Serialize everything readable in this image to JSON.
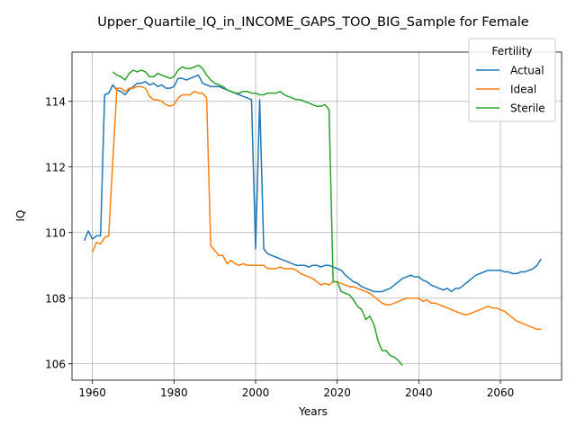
{
  "chart_data": {
    "type": "line",
    "title": "Upper_Quartile_IQ_in_INCOME_GAPS_TOO_BIG_Sample for Female",
    "xlabel": "Years",
    "ylabel": "IQ",
    "xlim": [
      1955,
      2075
    ],
    "ylim": [
      105.5,
      115.5
    ],
    "xticks": [
      1960,
      1980,
      2000,
      2020,
      2040,
      2060
    ],
    "yticks": [
      106,
      108,
      110,
      112,
      114
    ],
    "grid": true,
    "legend": {
      "title": "Fertility",
      "position": "top-right"
    },
    "series": [
      {
        "name": "Actual",
        "color": "#1f77b4",
        "points": [
          [
            1958,
            109.75
          ],
          [
            1959,
            110.05
          ],
          [
            1960,
            109.8
          ],
          [
            1961,
            109.9
          ],
          [
            1962,
            109.9
          ],
          [
            1963,
            114.2
          ],
          [
            1964,
            114.25
          ],
          [
            1965,
            114.5
          ],
          [
            1966,
            114.35
          ],
          [
            1967,
            114.3
          ],
          [
            1968,
            114.2
          ],
          [
            1969,
            114.35
          ],
          [
            1970,
            114.45
          ],
          [
            1971,
            114.55
          ],
          [
            1972,
            114.55
          ],
          [
            1973,
            114.6
          ],
          [
            1974,
            114.5
          ],
          [
            1975,
            114.55
          ],
          [
            1976,
            114.45
          ],
          [
            1977,
            114.5
          ],
          [
            1978,
            114.4
          ],
          [
            1979,
            114.4
          ],
          [
            1980,
            114.45
          ],
          [
            1981,
            114.7
          ],
          [
            1982,
            114.7
          ],
          [
            1983,
            114.65
          ],
          [
            1984,
            114.7
          ],
          [
            1985,
            114.75
          ],
          [
            1986,
            114.8
          ],
          [
            1987,
            114.55
          ],
          [
            1988,
            114.5
          ],
          [
            1989,
            114.45
          ],
          [
            1990,
            114.45
          ],
          [
            1991,
            114.45
          ],
          [
            1992,
            114.4
          ],
          [
            1993,
            114.35
          ],
          [
            1994,
            114.3
          ],
          [
            1995,
            114.25
          ],
          [
            1996,
            114.2
          ],
          [
            1997,
            114.15
          ],
          [
            1998,
            114.1
          ],
          [
            1999,
            114.05
          ],
          [
            2000,
            109.5
          ],
          [
            2001,
            114.05
          ],
          [
            2002,
            109.5
          ],
          [
            2003,
            109.35
          ],
          [
            2004,
            109.3
          ],
          [
            2005,
            109.25
          ],
          [
            2006,
            109.2
          ],
          [
            2007,
            109.15
          ],
          [
            2008,
            109.1
          ],
          [
            2009,
            109.05
          ],
          [
            2010,
            109.0
          ],
          [
            2011,
            109.0
          ],
          [
            2012,
            109.0
          ],
          [
            2013,
            108.95
          ],
          [
            2014,
            109.0
          ],
          [
            2015,
            109.0
          ],
          [
            2016,
            108.95
          ],
          [
            2017,
            109.0
          ],
          [
            2018,
            109.0
          ],
          [
            2019,
            108.95
          ],
          [
            2020,
            108.9
          ],
          [
            2021,
            108.85
          ],
          [
            2022,
            108.7
          ],
          [
            2023,
            108.6
          ],
          [
            2024,
            108.5
          ],
          [
            2025,
            108.45
          ],
          [
            2026,
            108.35
          ],
          [
            2027,
            108.3
          ],
          [
            2028,
            108.25
          ],
          [
            2029,
            108.2
          ],
          [
            2030,
            108.2
          ],
          [
            2031,
            108.2
          ],
          [
            2032,
            108.25
          ],
          [
            2033,
            108.3
          ],
          [
            2034,
            108.4
          ],
          [
            2035,
            108.5
          ],
          [
            2036,
            108.6
          ],
          [
            2037,
            108.65
          ],
          [
            2038,
            108.7
          ],
          [
            2039,
            108.65
          ],
          [
            2040,
            108.65
          ],
          [
            2041,
            108.55
          ],
          [
            2042,
            108.5
          ],
          [
            2043,
            108.4
          ],
          [
            2044,
            108.35
          ],
          [
            2045,
            108.3
          ],
          [
            2046,
            108.25
          ],
          [
            2047,
            108.3
          ],
          [
            2048,
            108.2
          ],
          [
            2049,
            108.3
          ],
          [
            2050,
            108.3
          ],
          [
            2051,
            108.4
          ],
          [
            2052,
            108.5
          ],
          [
            2053,
            108.6
          ],
          [
            2054,
            108.7
          ],
          [
            2055,
            108.75
          ],
          [
            2056,
            108.8
          ],
          [
            2057,
            108.85
          ],
          [
            2058,
            108.85
          ],
          [
            2059,
            108.85
          ],
          [
            2060,
            108.85
          ],
          [
            2061,
            108.8
          ],
          [
            2062,
            108.8
          ],
          [
            2063,
            108.75
          ],
          [
            2064,
            108.75
          ],
          [
            2065,
            108.8
          ],
          [
            2066,
            108.8
          ],
          [
            2067,
            108.85
          ],
          [
            2068,
            108.9
          ],
          [
            2069,
            109.0
          ],
          [
            2070,
            109.2
          ]
        ]
      },
      {
        "name": "Ideal",
        "color": "#ff7f0e",
        "points": [
          [
            1960,
            109.4
          ],
          [
            1961,
            109.7
          ],
          [
            1962,
            109.65
          ],
          [
            1963,
            109.85
          ],
          [
            1964,
            109.9
          ],
          [
            1965,
            112.2
          ],
          [
            1966,
            114.4
          ],
          [
            1967,
            114.4
          ],
          [
            1968,
            114.3
          ],
          [
            1969,
            114.4
          ],
          [
            1970,
            114.4
          ],
          [
            1971,
            114.45
          ],
          [
            1972,
            114.45
          ],
          [
            1973,
            114.4
          ],
          [
            1974,
            114.15
          ],
          [
            1975,
            114.05
          ],
          [
            1976,
            114.05
          ],
          [
            1977,
            114.0
          ],
          [
            1978,
            113.9
          ],
          [
            1979,
            113.85
          ],
          [
            1980,
            113.9
          ],
          [
            1981,
            114.1
          ],
          [
            1982,
            114.2
          ],
          [
            1983,
            114.2
          ],
          [
            1984,
            114.2
          ],
          [
            1985,
            114.3
          ],
          [
            1986,
            114.25
          ],
          [
            1987,
            114.25
          ],
          [
            1988,
            114.1
          ],
          [
            1989,
            109.6
          ],
          [
            1990,
            109.45
          ],
          [
            1991,
            109.3
          ],
          [
            1992,
            109.3
          ],
          [
            1993,
            109.05
          ],
          [
            1994,
            109.15
          ],
          [
            1995,
            109.05
          ],
          [
            1996,
            109.0
          ],
          [
            1997,
            109.05
          ],
          [
            1998,
            109.0
          ],
          [
            1999,
            109.0
          ],
          [
            2000,
            109.0
          ],
          [
            2001,
            109.0
          ],
          [
            2002,
            109.0
          ],
          [
            2003,
            108.9
          ],
          [
            2004,
            108.9
          ],
          [
            2005,
            108.9
          ],
          [
            2006,
            108.95
          ],
          [
            2007,
            108.9
          ],
          [
            2008,
            108.9
          ],
          [
            2009,
            108.9
          ],
          [
            2010,
            108.85
          ],
          [
            2011,
            108.75
          ],
          [
            2012,
            108.7
          ],
          [
            2013,
            108.65
          ],
          [
            2014,
            108.6
          ],
          [
            2015,
            108.5
          ],
          [
            2016,
            108.4
          ],
          [
            2017,
            108.45
          ],
          [
            2018,
            108.4
          ],
          [
            2019,
            108.5
          ],
          [
            2020,
            108.5
          ],
          [
            2021,
            108.45
          ],
          [
            2022,
            108.4
          ],
          [
            2023,
            108.35
          ],
          [
            2024,
            108.35
          ],
          [
            2025,
            108.3
          ],
          [
            2026,
            108.25
          ],
          [
            2027,
            108.2
          ],
          [
            2028,
            108.15
          ],
          [
            2029,
            108.05
          ],
          [
            2030,
            107.95
          ],
          [
            2031,
            107.85
          ],
          [
            2032,
            107.8
          ],
          [
            2033,
            107.8
          ],
          [
            2034,
            107.85
          ],
          [
            2035,
            107.9
          ],
          [
            2036,
            107.95
          ],
          [
            2037,
            108.0
          ],
          [
            2038,
            108.0
          ],
          [
            2039,
            108.0
          ],
          [
            2040,
            108.0
          ],
          [
            2041,
            107.9
          ],
          [
            2042,
            107.95
          ],
          [
            2043,
            107.85
          ],
          [
            2044,
            107.85
          ],
          [
            2045,
            107.8
          ],
          [
            2046,
            107.75
          ],
          [
            2047,
            107.7
          ],
          [
            2048,
            107.65
          ],
          [
            2049,
            107.6
          ],
          [
            2050,
            107.55
          ],
          [
            2051,
            107.5
          ],
          [
            2052,
            107.5
          ],
          [
            2053,
            107.55
          ],
          [
            2054,
            107.6
          ],
          [
            2055,
            107.65
          ],
          [
            2056,
            107.7
          ],
          [
            2057,
            107.75
          ],
          [
            2058,
            107.7
          ],
          [
            2059,
            107.7
          ],
          [
            2060,
            107.65
          ],
          [
            2061,
            107.6
          ],
          [
            2062,
            107.5
          ],
          [
            2063,
            107.4
          ],
          [
            2064,
            107.3
          ],
          [
            2065,
            107.25
          ],
          [
            2066,
            107.2
          ],
          [
            2067,
            107.15
          ],
          [
            2068,
            107.1
          ],
          [
            2069,
            107.05
          ],
          [
            2070,
            107.05
          ]
        ]
      },
      {
        "name": "Sterile",
        "color": "#2ca02c",
        "points": [
          [
            1965,
            114.9
          ],
          [
            1966,
            114.8
          ],
          [
            1967,
            114.75
          ],
          [
            1968,
            114.65
          ],
          [
            1969,
            114.85
          ],
          [
            1970,
            114.95
          ],
          [
            1971,
            114.9
          ],
          [
            1972,
            114.95
          ],
          [
            1973,
            114.9
          ],
          [
            1974,
            114.75
          ],
          [
            1975,
            114.75
          ],
          [
            1976,
            114.85
          ],
          [
            1977,
            114.8
          ],
          [
            1978,
            114.75
          ],
          [
            1979,
            114.7
          ],
          [
            1980,
            114.75
          ],
          [
            1981,
            114.95
          ],
          [
            1982,
            115.05
          ],
          [
            1983,
            115.0
          ],
          [
            1984,
            115.0
          ],
          [
            1985,
            115.05
          ],
          [
            1986,
            115.1
          ],
          [
            1987,
            115.0
          ],
          [
            1988,
            114.8
          ],
          [
            1989,
            114.65
          ],
          [
            1990,
            114.55
          ],
          [
            1991,
            114.5
          ],
          [
            1992,
            114.45
          ],
          [
            1993,
            114.35
          ],
          [
            1994,
            114.3
          ],
          [
            1995,
            114.25
          ],
          [
            1996,
            114.25
          ],
          [
            1997,
            114.3
          ],
          [
            1998,
            114.3
          ],
          [
            1999,
            114.25
          ],
          [
            2000,
            114.25
          ],
          [
            2001,
            114.2
          ],
          [
            2002,
            114.2
          ],
          [
            2003,
            114.25
          ],
          [
            2004,
            114.25
          ],
          [
            2005,
            114.25
          ],
          [
            2006,
            114.3
          ],
          [
            2007,
            114.2
          ],
          [
            2008,
            114.15
          ],
          [
            2009,
            114.1
          ],
          [
            2010,
            114.05
          ],
          [
            2011,
            114.05
          ],
          [
            2012,
            114.0
          ],
          [
            2013,
            113.95
          ],
          [
            2014,
            113.9
          ],
          [
            2015,
            113.85
          ],
          [
            2016,
            113.85
          ],
          [
            2017,
            113.9
          ],
          [
            2018,
            113.75
          ],
          [
            2019,
            108.5
          ],
          [
            2020,
            108.5
          ],
          [
            2021,
            108.2
          ],
          [
            2022,
            108.15
          ],
          [
            2023,
            108.1
          ],
          [
            2024,
            107.95
          ],
          [
            2025,
            107.75
          ],
          [
            2026,
            107.65
          ],
          [
            2027,
            107.35
          ],
          [
            2028,
            107.45
          ],
          [
            2029,
            107.2
          ],
          [
            2030,
            106.7
          ],
          [
            2031,
            106.4
          ],
          [
            2032,
            106.4
          ],
          [
            2033,
            106.25
          ],
          [
            2034,
            106.2
          ],
          [
            2035,
            106.1
          ],
          [
            2036,
            105.95
          ]
        ]
      }
    ]
  }
}
